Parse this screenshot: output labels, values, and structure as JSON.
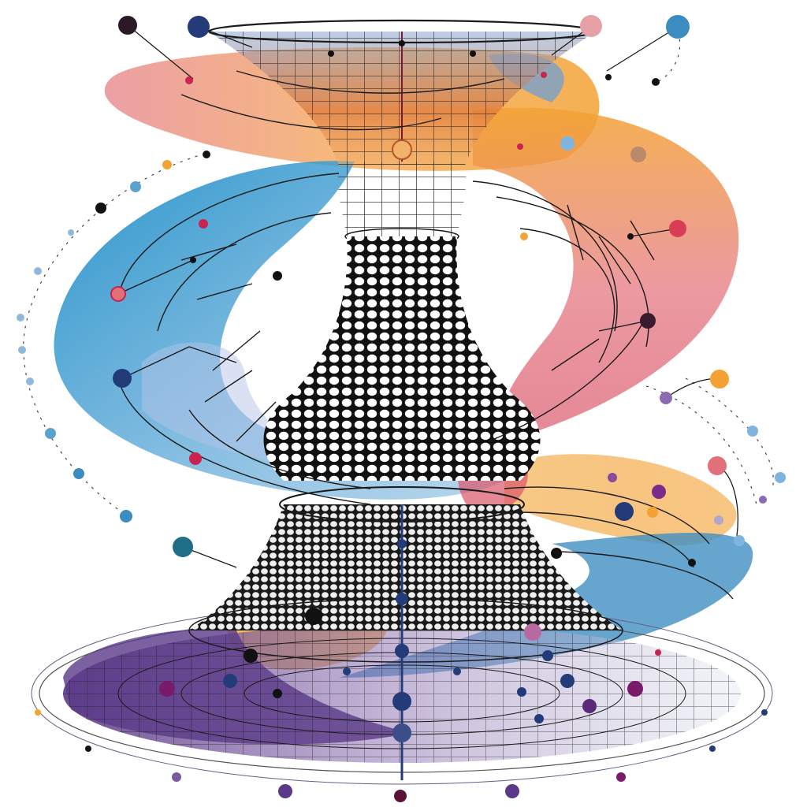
{
  "palette": {
    "background": "#ffffff",
    "ink": "#111111",
    "navy": "#243b7a",
    "blue": "#2f8fc6",
    "sky": "#8fb8dc",
    "teal": "#1e6e86",
    "orange": "#f3a233",
    "peach": "#f6c27a",
    "coral": "#e2707a",
    "rose": "#e7a0a6",
    "crimson": "#c8244f",
    "purple": "#6b3e8c",
    "violet": "#8a6bb0",
    "plum": "#5a1237",
    "charcoal": "#2b1a26"
  },
  "scene": {
    "subject": "wormhole-funnel-network",
    "elements": [
      "upper-funnel",
      "lower-funnel",
      "ribbon-swirls",
      "base-disc",
      "network-nodes",
      "orbit-trails"
    ]
  }
}
